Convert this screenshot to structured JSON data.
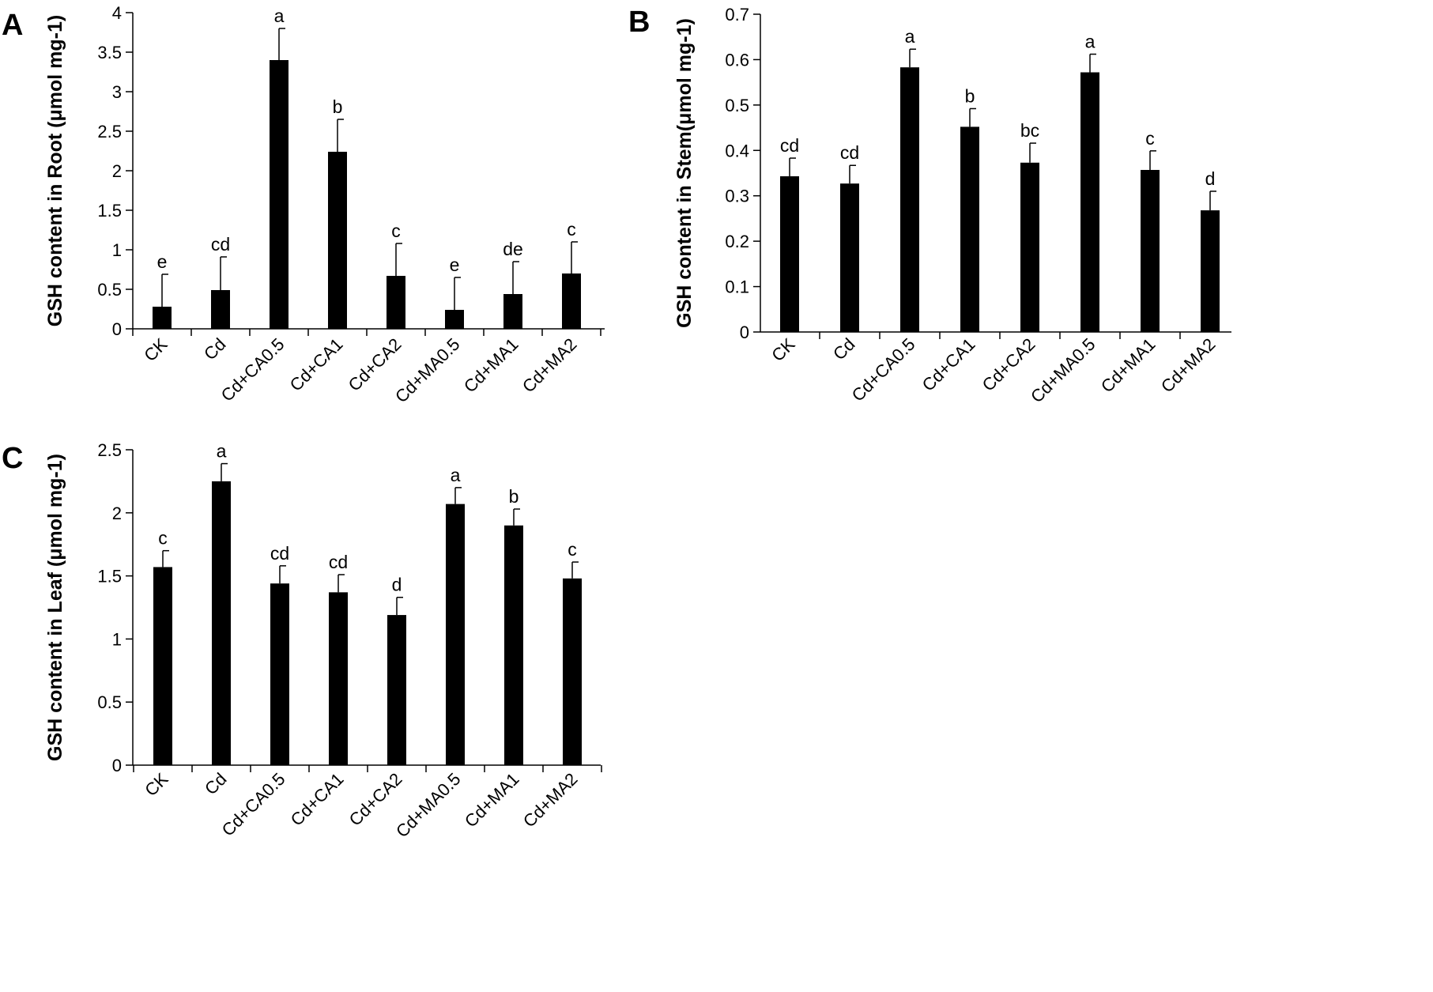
{
  "chart_data": [
    {
      "panel": "A",
      "type": "bar",
      "ylabel": "GSH content in Root (μmol mg-1)",
      "categories": [
        "CK",
        "Cd",
        "Cd+CA0.5",
        "Cd+CA1",
        "Cd+CA2",
        "Cd+MA0.5",
        "Cd+MA1",
        "Cd+MA2"
      ],
      "values": [
        0.28,
        0.49,
        3.4,
        2.24,
        0.67,
        0.24,
        0.44,
        0.7
      ],
      "errors": [
        0.41,
        0.42,
        0.4,
        0.41,
        0.41,
        0.41,
        0.41,
        0.4
      ],
      "significance": [
        "e",
        "cd",
        "a",
        "b",
        "c",
        "e",
        "de",
        "c"
      ],
      "ylim": [
        0,
        4
      ],
      "yticks": [
        0,
        0.5,
        1,
        1.5,
        2,
        2.5,
        3,
        3.5,
        4
      ],
      "ytick_labels": [
        "0",
        "0.5",
        "1",
        "1.5",
        "2",
        "2.5",
        "3",
        "3.5",
        "4"
      ],
      "color": "#000000"
    },
    {
      "panel": "B",
      "type": "bar",
      "ylabel": "GSH content in Stem(μmol mg-1)",
      "categories": [
        "CK",
        "Cd",
        "Cd+CA0.5",
        "Cd+CA1",
        "Cd+CA2",
        "Cd+MA0.5",
        "Cd+MA1",
        "Cd+MA2"
      ],
      "values": [
        0.343,
        0.327,
        0.583,
        0.452,
        0.373,
        0.572,
        0.357,
        0.268
      ],
      "errors": [
        0.04,
        0.04,
        0.04,
        0.04,
        0.043,
        0.04,
        0.042,
        0.042
      ],
      "significance": [
        "cd",
        "cd",
        "a",
        "b",
        "bc",
        "a",
        "c",
        "d"
      ],
      "ylim": [
        0,
        0.7
      ],
      "yticks": [
        0,
        0.1,
        0.2,
        0.3,
        0.4,
        0.5,
        0.6,
        0.7
      ],
      "ytick_labels": [
        "0",
        "0.1",
        "0.2",
        "0.3",
        "0.4",
        "0.5",
        "0.6",
        "0.7"
      ],
      "color": "#000000"
    },
    {
      "panel": "C",
      "type": "bar",
      "ylabel": "GSH content in Leaf (μmol mg-1)",
      "categories": [
        "CK",
        "Cd",
        "Cd+CA0.5",
        "Cd+CA1",
        "Cd+CA2",
        "Cd+MA0.5",
        "Cd+MA1",
        "Cd+MA2"
      ],
      "values": [
        1.57,
        2.25,
        1.44,
        1.37,
        1.19,
        2.07,
        1.9,
        1.48
      ],
      "errors": [
        0.13,
        0.14,
        0.14,
        0.14,
        0.14,
        0.13,
        0.13,
        0.13
      ],
      "significance": [
        "c",
        "a",
        "cd",
        "cd",
        "d",
        "a",
        "b",
        "c"
      ],
      "ylim": [
        0,
        2.5
      ],
      "yticks": [
        0,
        0.5,
        1,
        1.5,
        2,
        2.5
      ],
      "ytick_labels": [
        "0",
        "0.5",
        "1",
        "1.5",
        "2",
        "2.5"
      ],
      "color": "#000000"
    }
  ]
}
